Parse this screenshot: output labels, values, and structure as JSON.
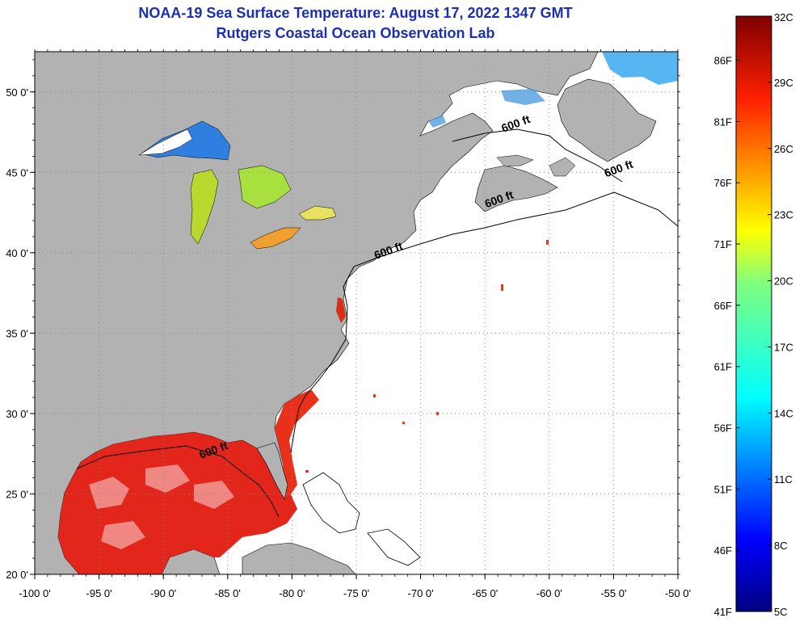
{
  "title": "NOAA-19 Sea Surface Temperature:  August 17, 2022 1347 GMT",
  "subtitle": "Rutgers Coastal Ocean Observation Lab",
  "map": {
    "lon_range": [
      -100,
      -50
    ],
    "lat_range": [
      20,
      52.5
    ],
    "lon_ticks": [
      {
        "value": -100,
        "label": "-100 0'"
      },
      {
        "value": -95,
        "label": "-95 0'"
      },
      {
        "value": -90,
        "label": "-90 0'"
      },
      {
        "value": -85,
        "label": "-85 0'"
      },
      {
        "value": -80,
        "label": "-80 0'"
      },
      {
        "value": -75,
        "label": "-75 0'"
      },
      {
        "value": -70,
        "label": "-70 0'"
      },
      {
        "value": -65,
        "label": "-65 0'"
      },
      {
        "value": -60,
        "label": "-60 0'"
      },
      {
        "value": -55,
        "label": "-55 0'"
      },
      {
        "value": -50,
        "label": "-50 0'"
      }
    ],
    "lat_ticks": [
      {
        "value": 20,
        "label": "20 0'"
      },
      {
        "value": 25,
        "label": "25 0'"
      },
      {
        "value": 30,
        "label": "30 0'"
      },
      {
        "value": 35,
        "label": "35 0'"
      },
      {
        "value": 40,
        "label": "40 0'"
      },
      {
        "value": 45,
        "label": "45 0'"
      },
      {
        "value": 50,
        "label": "50 0'"
      }
    ],
    "isobath_labels": [
      {
        "text": "600 ft",
        "lon": -62.5,
        "lat": 47.8
      },
      {
        "text": "600 ft",
        "lon": -54.5,
        "lat": 45.0
      },
      {
        "text": "600 ft",
        "lon": -63.8,
        "lat": 43.1
      },
      {
        "text": "600 ft",
        "lon": -72.4,
        "lat": 39.9
      },
      {
        "text": "600 ft",
        "lon": -86.0,
        "lat": 27.5
      }
    ],
    "colors": {
      "land": "#b2b2b2",
      "ocean_no_data": "#ffffff",
      "gulf_sst": "#e01a10"
    }
  },
  "colorbar": {
    "min_c": 5,
    "max_c": 32,
    "celsius_labels": [
      "32C",
      "29C",
      "26C",
      "23C",
      "20C",
      "17C",
      "14C",
      "11C",
      "8C",
      "5C"
    ],
    "fahrenheit_labels": [
      "86F",
      "81F",
      "76F",
      "71F",
      "66F",
      "61F",
      "56F",
      "51F",
      "46F",
      "41F"
    ]
  }
}
